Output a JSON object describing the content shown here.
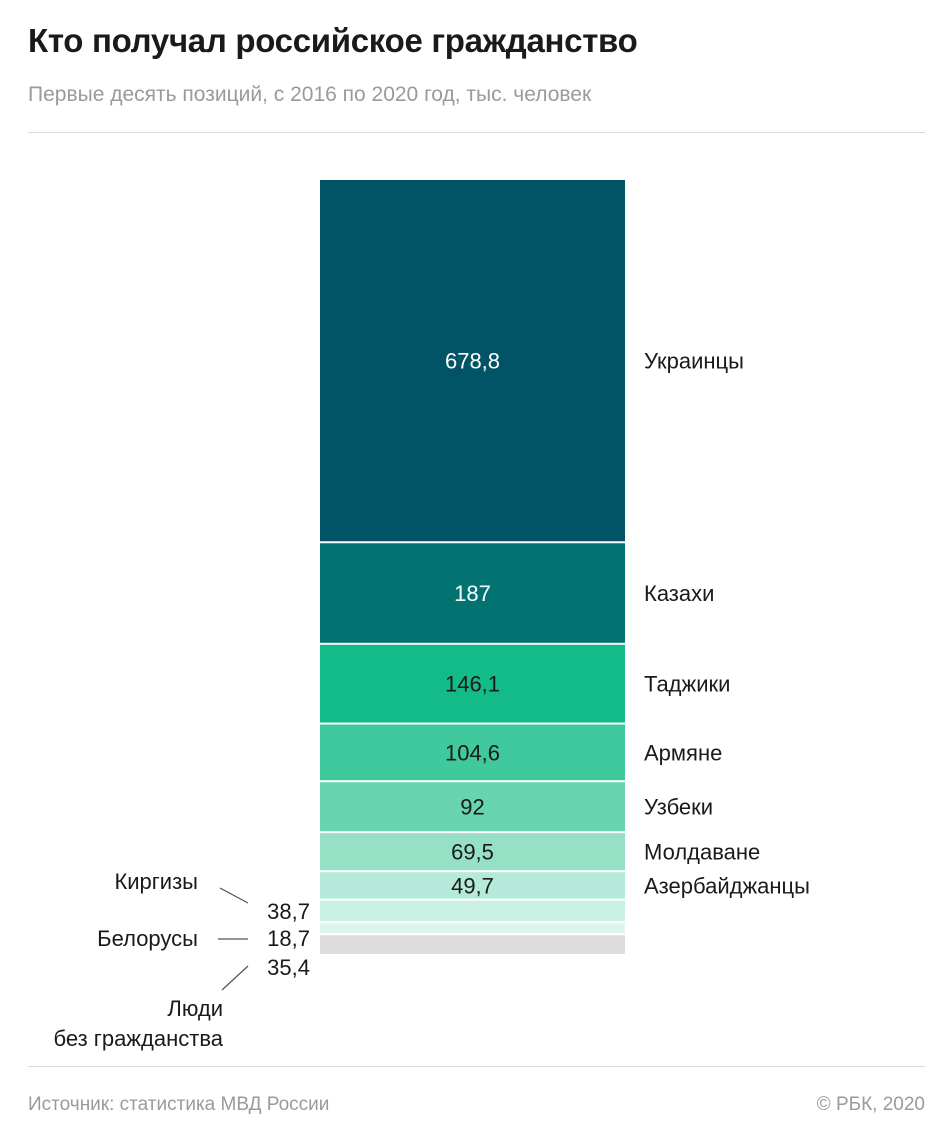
{
  "header": {
    "title": "Кто получал российское гражданство",
    "subtitle": "Первые десять позиций, с 2016 по 2020 год, тыс. человек"
  },
  "footer": {
    "source": "Источник: статистика МВД России",
    "copyright": "© РБК, 2020"
  },
  "chart_data": {
    "type": "bar",
    "stacked": true,
    "orientation": "vertical",
    "categories": [
      "Украинцы",
      "Казахи",
      "Таджики",
      "Армяне",
      "Узбеки",
      "Молдаване",
      "Азербайджанцы",
      "Киргизы",
      "Белорусы",
      "Люди без гражданства"
    ],
    "values": [
      678.8,
      187,
      146.1,
      104.6,
      92,
      69.5,
      49.7,
      38.7,
      18.7,
      35.4
    ],
    "value_labels": [
      "678,8",
      "187",
      "146,1",
      "104,6",
      "92",
      "69,5",
      "49,7",
      "38,7",
      "18,7",
      "35,4"
    ],
    "outside_labels_left": {
      "Киргизы": "Киргизы",
      "Белорусы": "Белорусы",
      "Люди без гражданства": [
        "Люди",
        "без гражданства"
      ]
    },
    "colors": [
      "#015465",
      "#037372",
      "#12bb87",
      "#41c99e",
      "#68d4b0",
      "#96e0c6",
      "#b5eadb",
      "#c9f1e6",
      "#dcf5ee",
      "#dcdcdc"
    ],
    "label_colors": [
      "#ffffff",
      "#ffffff",
      "#1a1a1a",
      "#1a1a1a",
      "#1a1a1a",
      "#1a1a1a",
      "#1a1a1a",
      "#1a1a1a",
      "#1a1a1a",
      "#1a1a1a"
    ],
    "legend": "right"
  }
}
